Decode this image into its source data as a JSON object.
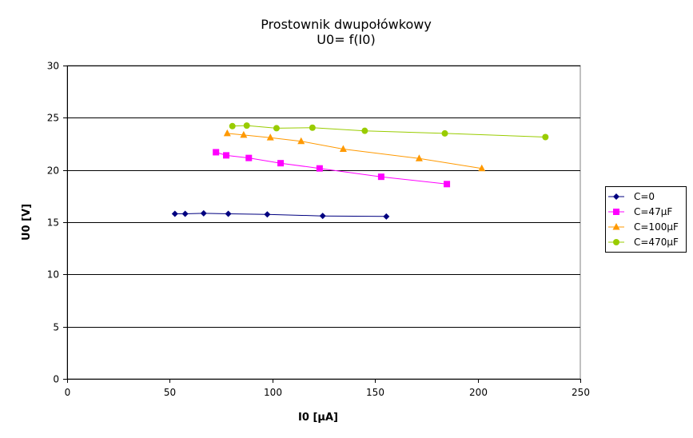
{
  "chart_data": {
    "type": "scatter",
    "title": "Prostownik dwupołówkowy",
    "subtitle": "U0= f(I0)",
    "xlabel": "I0 [µA]",
    "ylabel": "U0 [V]",
    "xlim": [
      0,
      250
    ],
    "ylim": [
      0,
      30
    ],
    "xticks": [
      0,
      50,
      100,
      150,
      200,
      250
    ],
    "yticks": [
      0,
      5,
      10,
      15,
      20,
      25,
      30
    ],
    "grid": "horizontal",
    "legend_position": "right",
    "series": [
      {
        "name": "C=0",
        "color": "#000080",
        "marker": "diamond",
        "points": [
          [
            52.5,
            15.8
          ],
          [
            57.5,
            15.8
          ],
          [
            66.5,
            15.85
          ],
          [
            78.5,
            15.8
          ],
          [
            97.5,
            15.75
          ],
          [
            124.5,
            15.6
          ],
          [
            155.5,
            15.55
          ]
        ]
      },
      {
        "name": "C=47µF",
        "color": "#ff00ff",
        "marker": "square",
        "points": [
          [
            72.5,
            21.7
          ],
          [
            77.5,
            21.4
          ],
          [
            88.5,
            21.15
          ],
          [
            104,
            20.65
          ],
          [
            123,
            20.15
          ],
          [
            153,
            19.35
          ],
          [
            185,
            18.65
          ]
        ]
      },
      {
        "name": "C=100µF",
        "color": "#ff9900",
        "marker": "triangle",
        "points": [
          [
            78,
            23.5
          ],
          [
            86,
            23.35
          ],
          [
            99,
            23.1
          ],
          [
            114,
            22.75
          ],
          [
            134.5,
            22.0
          ],
          [
            171.5,
            21.1
          ],
          [
            202,
            20.15
          ]
        ]
      },
      {
        "name": "C=470µF",
        "color": "#99cc00",
        "marker": "circle",
        "points": [
          [
            80.5,
            24.2
          ],
          [
            87.5,
            24.25
          ],
          [
            102,
            24.0
          ],
          [
            119.5,
            24.05
          ],
          [
            145,
            23.75
          ],
          [
            184,
            23.5
          ],
          [
            233,
            23.15
          ]
        ]
      }
    ]
  }
}
